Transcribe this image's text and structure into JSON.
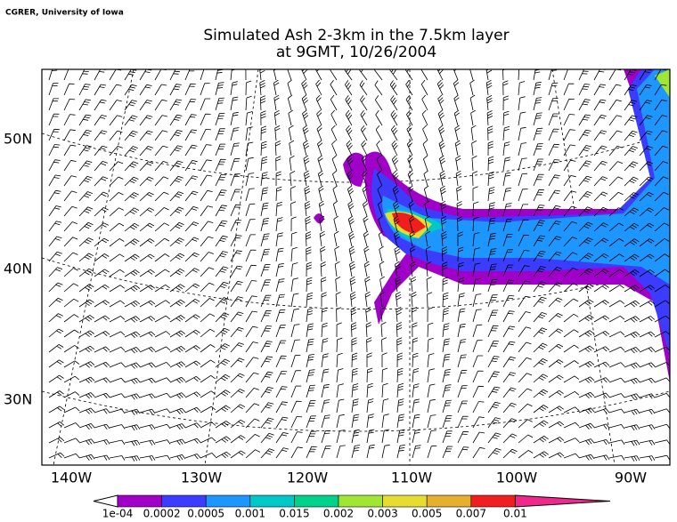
{
  "credit": "CGRER, University of Iowa",
  "title": [
    "Simulated Ash  2-3km in the 7.5km layer",
    "at 9GMT, 10/26/2004"
  ],
  "latitude_labels": [
    "50N",
    "40N",
    "30N"
  ],
  "longitude_labels": [
    "140W",
    "130W",
    "120W",
    "110W",
    "100W",
    "90W"
  ],
  "legend": {
    "labels": [
      "1e-04",
      "0.0002",
      "0.0005",
      "0.001",
      "0.015",
      "0.002",
      "0.003",
      "0.005",
      "0.007",
      "0.01"
    ],
    "colors": [
      "#ffffff",
      "#a000c8",
      "#3c3cff",
      "#1e96ff",
      "#00c8c8",
      "#00d28c",
      "#a0e632",
      "#e6dc32",
      "#e6af2d",
      "#f01e1e",
      "#f0288c"
    ]
  }
}
